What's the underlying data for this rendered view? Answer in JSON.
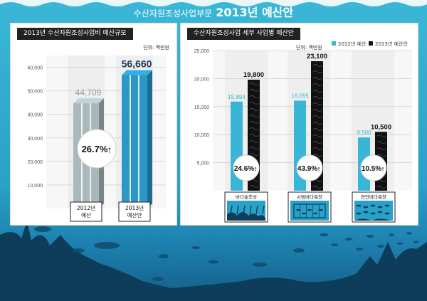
{
  "page": {
    "title_prefix": "수산자원조성사업부문",
    "title_main": "2013년 예산안"
  },
  "colors": {
    "budget_2012": "#39b6d6",
    "budget_2013": "#111111",
    "scale_2012": "#a9b8ba",
    "scale_2013": "#2b98c7",
    "sea": "#2aa1c7"
  },
  "panels": [
    {
      "title": "2013년 수산자원조성사업비 예산규모",
      "unit": "단위: 백만원"
    },
    {
      "title": "수산자원조성사업 세부 사업별 예산안",
      "unit": "단위: 백만원"
    }
  ],
  "legend": [
    {
      "label": "2012년 예산",
      "color": "#39b6d6"
    },
    {
      "label": "2013년 예산안",
      "color": "#111111"
    }
  ],
  "chart_data": [
    {
      "type": "bar",
      "title": "2013년 수산자원조성사업비 예산규모",
      "unit": "단위: 백만원",
      "categories": [
        "2012년\n예산",
        "2013년\n예산안"
      ],
      "values": [
        44709,
        56660
      ],
      "value_labels": [
        "44,709",
        "56,660"
      ],
      "ylim": [
        0,
        65000
      ],
      "yticks": [
        10000,
        20000,
        30000,
        40000,
        50000,
        60000
      ],
      "ytick_labels": [
        "10,000",
        "20,000",
        "30,000",
        "40,000",
        "50,000",
        "60,000"
      ],
      "annotation": "26.7%",
      "annotation_symbol": "↑"
    },
    {
      "type": "bar",
      "title": "수산자원조성사업 세부 사업별 예산안",
      "unit": "단위: 백만원",
      "categories": [
        "바다숲조성",
        "시범바다목장",
        "연안바다목장"
      ],
      "series": [
        {
          "name": "2012년 예산",
          "values": [
            15894,
            16055,
            9500
          ],
          "labels": [
            "15,894",
            "16,055",
            "9,500"
          ]
        },
        {
          "name": "2013년 예산안",
          "values": [
            19800,
            23100,
            10500
          ],
          "labels": [
            "19,800",
            "23,100",
            "10,500"
          ]
        }
      ],
      "ylim": [
        0,
        25000
      ],
      "yticks": [
        5000,
        10000,
        15000,
        20000,
        25000
      ],
      "ytick_labels": [
        "5,000",
        "10,000",
        "15,000",
        "20,000",
        "25,000"
      ],
      "growth_labels": [
        "24.6%",
        "43.9%",
        "10.5%"
      ],
      "growth_symbol": "↑",
      "legend_position": "top-right"
    }
  ]
}
